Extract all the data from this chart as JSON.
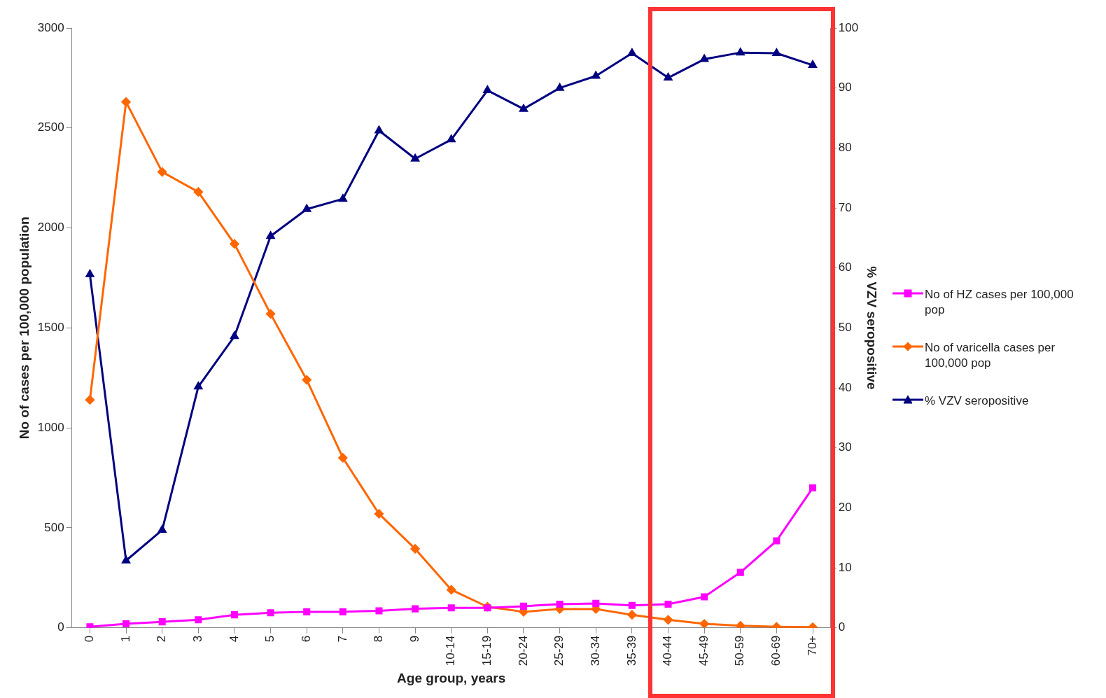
{
  "chart_data": {
    "type": "line",
    "xlabel": "Age group, years",
    "ylabel": "No of cases per 100,000 population",
    "y2label": "% VZV seropositive",
    "categories": [
      "0",
      "1",
      "2",
      "3",
      "4",
      "5",
      "6",
      "7",
      "8",
      "9",
      "10-14",
      "15-19",
      "20-24",
      "25-29",
      "30-34",
      "35-39",
      "40-44",
      "45-49",
      "50-59",
      "60-69",
      "70+"
    ],
    "series": [
      {
        "name": "No of HZ cases per 100,000 pop",
        "color": "#ff00ff",
        "marker": "square",
        "values": [
          5,
          20,
          30,
          40,
          65,
          75,
          80,
          80,
          85,
          95,
          100,
          100,
          108,
          118,
          122,
          112,
          118,
          155,
          277,
          435,
          700
        ]
      },
      {
        "name": "No of varicella cases per 100,000 pop",
        "color": "#ff6600",
        "marker": "diamond",
        "values": [
          1140,
          2630,
          2280,
          2180,
          1920,
          1570,
          1240,
          850,
          570,
          395,
          190,
          105,
          80,
          94,
          94,
          65,
          40,
          20,
          10,
          5,
          3
        ]
      },
      {
        "name": "% VZV seropositive",
        "color": "#000080",
        "marker": "triangle",
        "axis": "y2",
        "values": [
          58.9,
          11.2,
          16.3,
          40.2,
          48.6,
          65.3,
          69.8,
          71.5,
          82.9,
          78.2,
          81.4,
          89.6,
          86.5,
          90.0,
          92.0,
          95.8,
          91.7,
          94.8,
          95.9,
          95.8,
          93.8
        ]
      }
    ],
    "ylim": [
      0,
      3000
    ],
    "yticks": [
      0,
      500,
      1000,
      1500,
      2000,
      2500,
      3000
    ],
    "y2lim": [
      0,
      100
    ],
    "y2ticks": [
      0,
      10,
      20,
      30,
      40,
      50,
      60,
      70,
      80,
      90,
      100
    ],
    "grid": false,
    "legend": "right"
  }
}
